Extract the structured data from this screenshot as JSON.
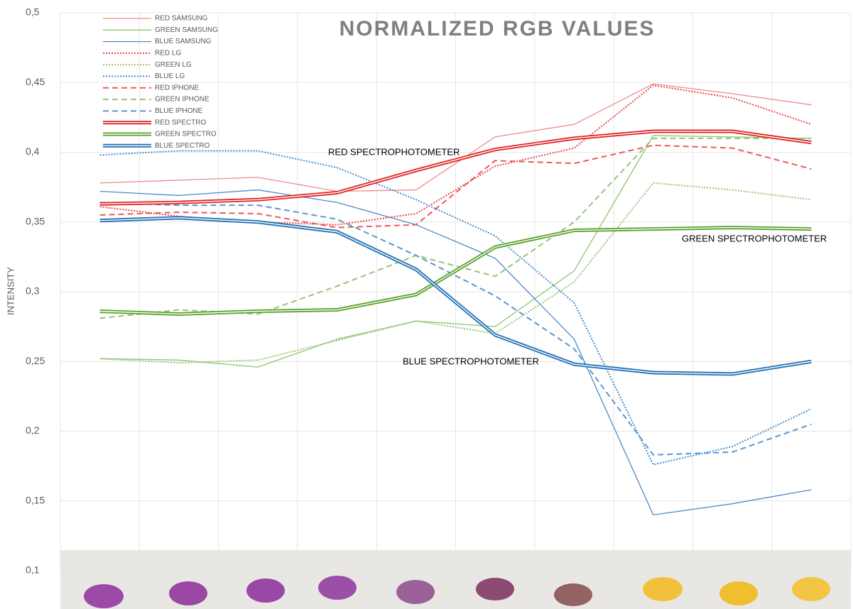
{
  "chart_data": {
    "type": "line",
    "title": "NORMALIZED RGB VALUES",
    "ylabel": "INTENSITY",
    "categories": [
      null,
      null,
      null,
      null,
      null,
      null,
      null,
      null,
      null,
      null
    ],
    "ylim": [
      0.1,
      0.5
    ],
    "yticks": [
      {
        "value": 0.1,
        "label": "0,1"
      },
      {
        "value": 0.15,
        "label": "0,15"
      },
      {
        "value": 0.2,
        "label": "0,2"
      },
      {
        "value": 0.25,
        "label": "0,25"
      },
      {
        "value": 0.3,
        "label": "0,3"
      },
      {
        "value": 0.35,
        "label": "0,35"
      },
      {
        "value": 0.4,
        "label": "0,4"
      },
      {
        "value": 0.45,
        "label": "0,45"
      },
      {
        "value": 0.5,
        "label": "0,5"
      }
    ],
    "grid": true,
    "legend": "top-left",
    "series": [
      {
        "name": "RED SAMSUNG",
        "color": "#f08a8a",
        "style": "solid",
        "values": [
          0.378,
          0.38,
          0.382,
          0.372,
          0.373,
          0.411,
          0.42,
          0.449,
          0.442,
          0.434
        ]
      },
      {
        "name": "GREEN SAMSUNG",
        "color": "#8cc56a",
        "style": "solid",
        "values": [
          0.252,
          0.251,
          0.246,
          0.266,
          0.279,
          0.275,
          0.315,
          0.412,
          0.411,
          0.41
        ]
      },
      {
        "name": "BLUE SAMSUNG",
        "color": "#4a8cc8",
        "style": "solid",
        "values": [
          0.372,
          0.369,
          0.373,
          0.364,
          0.348,
          0.324,
          0.266,
          0.14,
          0.148,
          0.158
        ]
      },
      {
        "name": "RED LG",
        "color": "#e8454a",
        "style": "dotted",
        "values": [
          0.361,
          0.354,
          0.35,
          0.348,
          0.356,
          0.39,
          0.403,
          0.448,
          0.439,
          0.42
        ]
      },
      {
        "name": "GREEN LG",
        "color": "#9cc27a",
        "style": "dotted",
        "values": [
          0.252,
          0.249,
          0.251,
          0.265,
          0.279,
          0.27,
          0.307,
          0.378,
          0.373,
          0.366
        ]
      },
      {
        "name": "BLUE LG",
        "color": "#3f8fd0",
        "style": "dotted",
        "values": [
          0.398,
          0.401,
          0.401,
          0.389,
          0.366,
          0.34,
          0.292,
          0.176,
          0.189,
          0.216
        ]
      },
      {
        "name": "RED IPHONE",
        "color": "#ea5a5e",
        "style": "dashed",
        "values": [
          0.355,
          0.357,
          0.356,
          0.346,
          0.348,
          0.394,
          0.392,
          0.405,
          0.403,
          0.388
        ]
      },
      {
        "name": "GREEN IPHONE",
        "color": "#94c47a",
        "style": "dashed",
        "values": [
          0.281,
          0.287,
          0.284,
          0.304,
          0.326,
          0.311,
          0.35,
          0.41,
          0.41,
          0.41
        ]
      },
      {
        "name": "BLUE IPHONE",
        "color": "#5a96d0",
        "style": "dashed",
        "values": [
          0.364,
          0.362,
          0.362,
          0.352,
          0.326,
          0.297,
          0.259,
          0.183,
          0.185,
          0.205
        ]
      },
      {
        "name": "RED SPECTRO",
        "color": "#e02424",
        "style": "double",
        "values": [
          0.363,
          0.364,
          0.366,
          0.371,
          0.387,
          0.402,
          0.41,
          0.415,
          0.415,
          0.407
        ]
      },
      {
        "name": "GREEN SPECTRO",
        "color": "#5aa02c",
        "style": "double",
        "values": [
          0.286,
          0.284,
          0.286,
          0.287,
          0.298,
          0.332,
          0.344,
          0.345,
          0.346,
          0.345
        ]
      },
      {
        "name": "BLUE SPECTRO",
        "color": "#1f6fb5",
        "style": "double",
        "values": [
          0.351,
          0.353,
          0.35,
          0.343,
          0.316,
          0.269,
          0.248,
          0.242,
          0.241,
          0.25
        ]
      }
    ],
    "annotations": [
      "RED SPECTROPHOTOMETER",
      "GREEN SPECTROPHOTOMETER",
      "BLUE SPECTROPHOTOMETER"
    ]
  }
}
